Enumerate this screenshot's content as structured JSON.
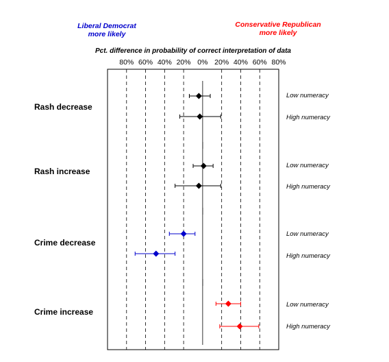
{
  "chart_data": {
    "type": "scatter",
    "title": "Pct. difference in probability of correct interpretation of data",
    "left_annotation": [
      "Liberal Democrat",
      "more likely"
    ],
    "right_annotation": [
      "Conservative Republican",
      "more likely"
    ],
    "tick_labels": [
      "80%",
      "60%",
      "40%",
      "20%",
      "0%",
      "20%",
      "40%",
      "60%",
      "80%"
    ],
    "tick_values": [
      -80,
      -60,
      -40,
      -20,
      0,
      20,
      40,
      60,
      80
    ],
    "xlim": [
      -100,
      80
    ],
    "grid": "vertical dashed",
    "colors": {
      "neutral": "#000000",
      "liberal": "#0000cc",
      "conservative": "#ff0000"
    },
    "groups": [
      {
        "name": "Rash decrease",
        "points": [
          {
            "level": "Low numeracy",
            "value": -4,
            "lo": -14,
            "hi": 8,
            "color": "neutral"
          },
          {
            "level": "High numeracy",
            "value": -3,
            "lo": -24,
            "hi": 19,
            "color": "neutral"
          }
        ]
      },
      {
        "name": "Rash increase",
        "points": [
          {
            "level": "Low numeracy",
            "value": 1,
            "lo": -10,
            "hi": 11,
            "color": "neutral"
          },
          {
            "level": "High numeracy",
            "value": -4,
            "lo": -29,
            "hi": 19,
            "color": "neutral"
          }
        ]
      },
      {
        "name": "Crime decrease",
        "points": [
          {
            "level": "Low numeracy",
            "value": -20,
            "lo": -35,
            "hi": -8,
            "color": "liberal"
          },
          {
            "level": "High numeracy",
            "value": -49,
            "lo": -71,
            "hi": -29,
            "color": "liberal"
          }
        ]
      },
      {
        "name": "Crime increase",
        "points": [
          {
            "level": "Low numeracy",
            "value": 27,
            "lo": 14,
            "hi": 40,
            "color": "conservative"
          },
          {
            "level": "High numeracy",
            "value": 39,
            "lo": 18,
            "hi": 59,
            "color": "conservative"
          }
        ]
      }
    ]
  }
}
